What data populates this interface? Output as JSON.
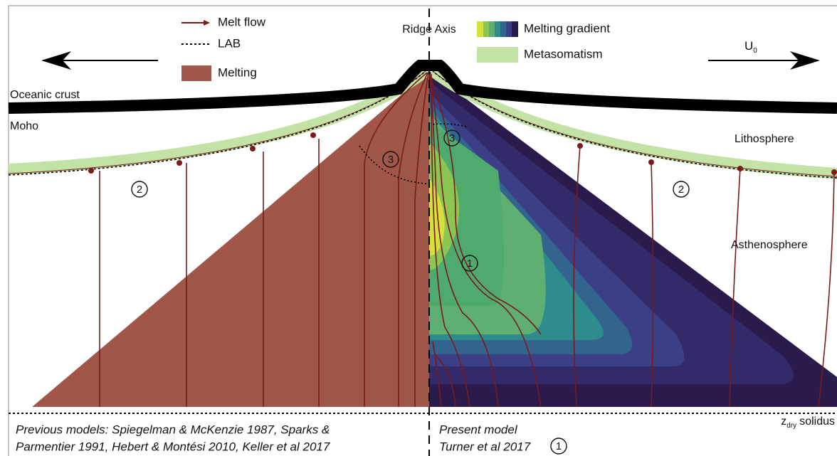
{
  "legend": {
    "melt_flow": "Melt flow",
    "lab": "LAB",
    "melting": "Melting",
    "melting_gradient": "Melting gradient",
    "metasomatism": "Metasomatism"
  },
  "ridge_axis": "Ridge Axis",
  "velocity": {
    "symbol": "U",
    "subscript": "0"
  },
  "labels": {
    "oceanic_crust": "Oceanic crust",
    "moho": "Moho",
    "lithosphere": "Lithosphere",
    "asthenosphere": "Asthenosphere"
  },
  "solidus": {
    "symbol": "z",
    "subscript": "dry",
    "text": "solidus"
  },
  "markers": [
    "2",
    "3",
    "3",
    "1",
    "2"
  ],
  "footer": {
    "previous_models": [
      "Previous models: Spiegelman & McKenzie 1987, Sparks &",
      "Parmentier 1991, Hebert & Montési 2010, Keller et al 2017"
    ],
    "present_model": "Present model",
    "reference": "Turner et al 2017",
    "reference_marker": "1"
  }
}
